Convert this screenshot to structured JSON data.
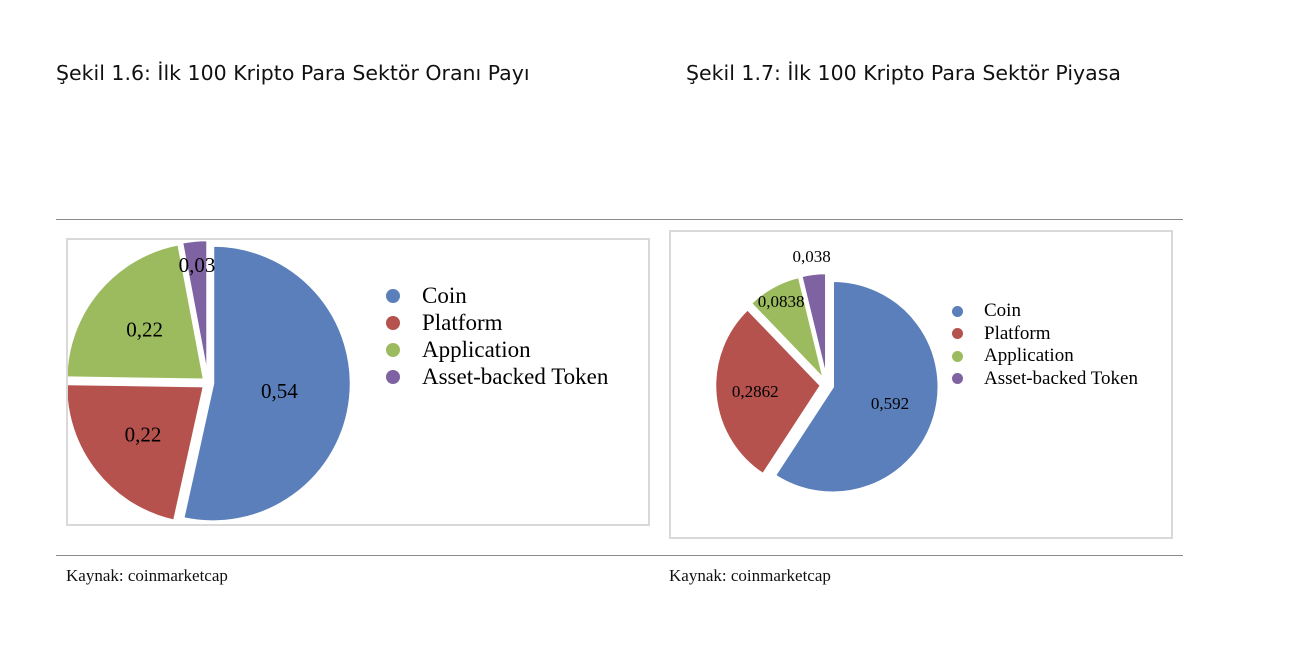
{
  "captions": {
    "left": "Şekil 1.6: İlk 100 Kripto Para Sektör Oranı Payı",
    "right": "Şekil 1.7: İlk 100 Kripto Para Sektör Piyasa"
  },
  "sources": {
    "left": "Kaynak: coinmarketcap",
    "right": "Kaynak: coinmarketcap"
  },
  "chart_data": [
    {
      "type": "pie",
      "title": "",
      "categories": [
        "Coin",
        "Platform",
        "Application",
        "Asset-backed Token"
      ],
      "values": [
        0.54,
        0.22,
        0.22,
        0.03
      ],
      "labels": [
        "0,54",
        "0,22",
        "0,22",
        "0,03"
      ],
      "colors": [
        "#5b7fbb",
        "#b5524e",
        "#9cbb5f",
        "#7f62a1"
      ],
      "exploded": true,
      "legend_position": "right"
    },
    {
      "type": "pie",
      "title": "",
      "categories": [
        "Coin",
        "Platform",
        "Application",
        "Asset-backed Token"
      ],
      "values": [
        0.592,
        0.2862,
        0.0838,
        0.038
      ],
      "labels": [
        "0,592",
        "0,2862",
        "0,0838",
        "0,038"
      ],
      "colors": [
        "#5b7fbb",
        "#b5524e",
        "#9cbb5f",
        "#7f62a1"
      ],
      "exploded": true,
      "legend_position": "right"
    }
  ]
}
